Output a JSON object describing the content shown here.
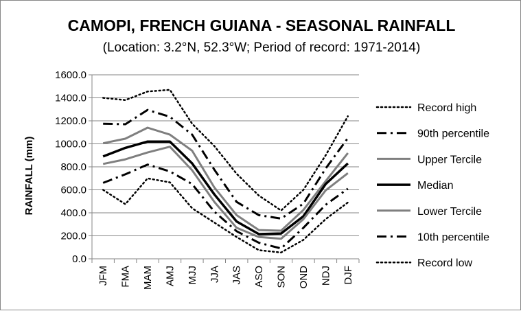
{
  "chart_data": {
    "type": "line",
    "title": "CAMOPI, FRENCH GUIANA - SEASONAL RAINFALL",
    "subtitle": "(Location: 3.2°N, 52.3°W; Period of record: 1971-2014)",
    "xlabel": "",
    "ylabel": "RAINFALL (mm)",
    "ylim": [
      0,
      1600
    ],
    "y_ticks": [
      "0.0",
      "200.0",
      "400.0",
      "600.0",
      "800.0",
      "1000.0",
      "1200.0",
      "1400.0",
      "1600.0"
    ],
    "categories": [
      "JFM",
      "FMA",
      "MAM",
      "AMJ",
      "MJJ",
      "JJA",
      "JAS",
      "ASO",
      "SON",
      "OND",
      "NDJ",
      "DJF"
    ],
    "grid": "horizontal",
    "legend_position": "right",
    "series": [
      {
        "name": "Record high",
        "color": "#000000",
        "style": "dotted",
        "values": [
          1400,
          1380,
          1455,
          1470,
          1175,
          980,
          740,
          550,
          420,
          600,
          900,
          1240
        ]
      },
      {
        "name": "90th percentile",
        "color": "#000000",
        "style": "dashdot",
        "values": [
          1175,
          1170,
          1295,
          1235,
          1080,
          775,
          495,
          380,
          350,
          480,
          785,
          1050
        ]
      },
      {
        "name": "Upper Tercile",
        "color": "#7f7f7f",
        "style": "solid",
        "values": [
          1005,
          1045,
          1140,
          1080,
          940,
          620,
          380,
          250,
          245,
          425,
          675,
          920
        ]
      },
      {
        "name": "Median",
        "color": "#000000",
        "style": "solid-thick",
        "values": [
          890,
          965,
          1020,
          1020,
          830,
          560,
          325,
          215,
          220,
          370,
          650,
          830
        ]
      },
      {
        "name": "Lower Tercile",
        "color": "#7f7f7f",
        "style": "solid",
        "values": [
          825,
          865,
          925,
          975,
          770,
          495,
          270,
          190,
          175,
          345,
          595,
          745
        ]
      },
      {
        "name": "10th percentile",
        "color": "#000000",
        "style": "dashdot",
        "values": [
          660,
          735,
          820,
          760,
          650,
          410,
          240,
          140,
          90,
          270,
          470,
          610
        ]
      },
      {
        "name": "Record low",
        "color": "#000000",
        "style": "dotted",
        "values": [
          600,
          475,
          700,
          665,
          440,
          315,
          190,
          75,
          55,
          165,
          345,
          490
        ]
      }
    ]
  }
}
